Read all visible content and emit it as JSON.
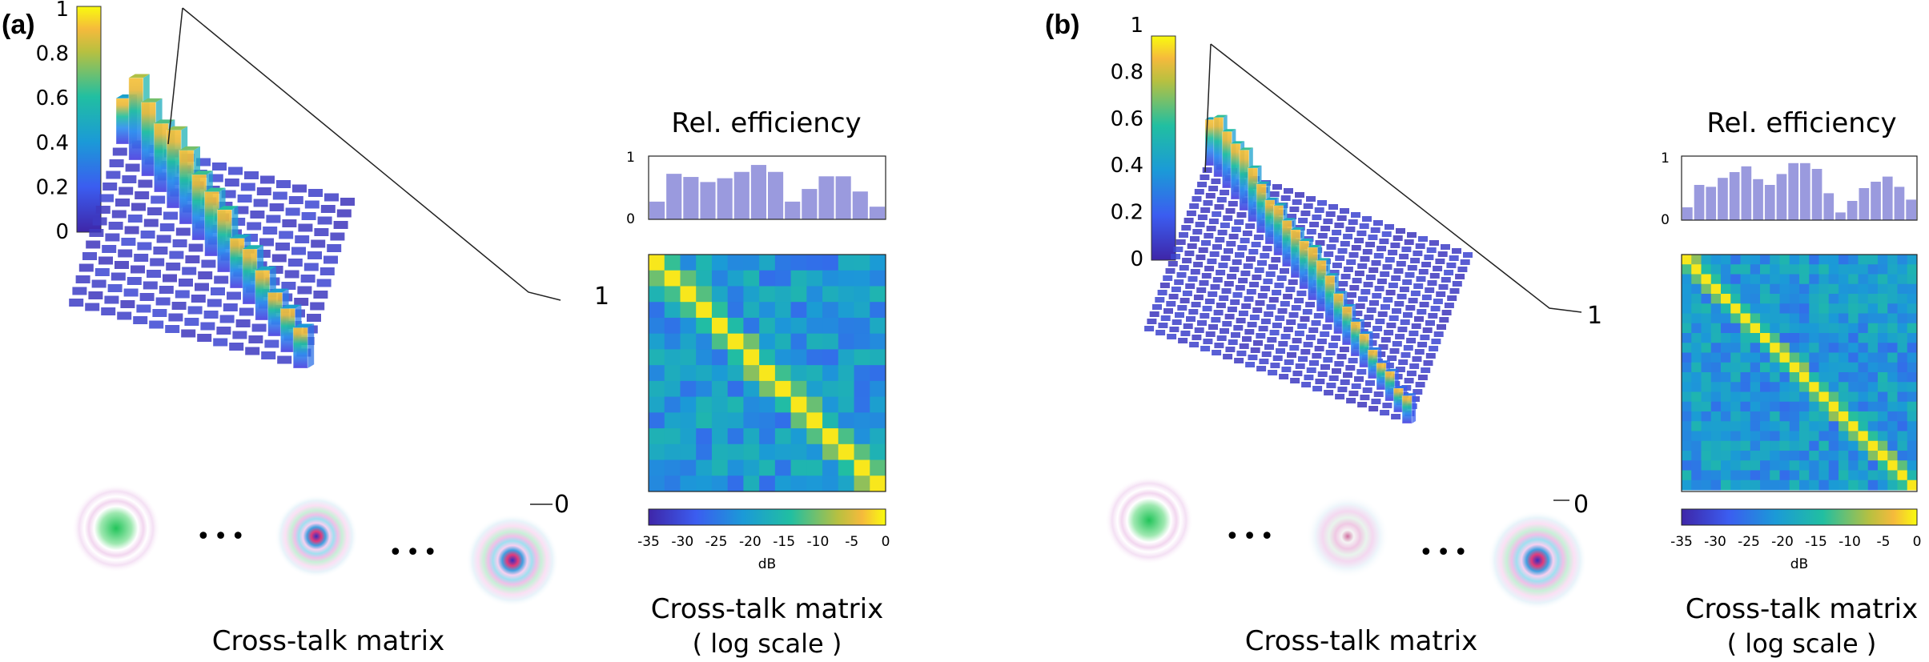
{
  "chart_data": [
    {
      "panel": "(a)",
      "type": "bar3d",
      "title": "Cross-talk matrix",
      "colorbar": {
        "ticks": [
          "0",
          "0.2",
          "0.4",
          "0.6",
          "0.8",
          "1"
        ],
        "range": [
          0,
          1
        ]
      },
      "axis_labels": {
        "near": "0",
        "far": "1"
      },
      "diagonal": [
        0.44,
        0.79,
        0.71,
        0.66,
        0.75,
        0.71,
        0.63,
        0.62,
        0.6,
        0.48,
        0.53,
        0.48,
        0.42,
        0.42,
        0.39
      ],
      "relative_efficiency": {
        "title": "Rel. efficiency",
        "yticks": [
          "1",
          "0"
        ],
        "values": [
          0.28,
          0.72,
          0.67,
          0.59,
          0.65,
          0.75,
          0.86,
          0.75,
          0.28,
          0.48,
          0.68,
          0.68,
          0.44,
          0.2
        ]
      },
      "log_matrix": {
        "title": "Cross-talk matrix",
        "subtitle": "( log  scale )",
        "unit": "dB",
        "colorbar_ticks": [
          "-35",
          "-30",
          "-25",
          "-20",
          "-15",
          "-10",
          "-5",
          "0"
        ],
        "size": 15
      },
      "mode_images": [
        "mode-1",
        "mode-mid",
        "mode-last"
      ],
      "ellipsis": [
        "•••",
        "•••"
      ]
    },
    {
      "panel": "(b)",
      "type": "bar3d",
      "title": "Cross-talk matrix",
      "colorbar": {
        "ticks": [
          "0",
          "0.2",
          "0.4",
          "0.6",
          "0.8",
          "1"
        ],
        "range": [
          0,
          1
        ]
      },
      "axis_labels": {
        "near": "0",
        "far": "1"
      },
      "diagonal": [
        0.48,
        0.62,
        0.59,
        0.58,
        0.63,
        0.56,
        0.51,
        0.46,
        0.52,
        0.48,
        0.5,
        0.5,
        0.55,
        0.53,
        0.49,
        0.42,
        0.4,
        0.36,
        0.35,
        0.3,
        0.28,
        0.31,
        0.25,
        0.29
      ],
      "relative_efficiency": {
        "title": "Rel. efficiency",
        "yticks": [
          "1",
          "0"
        ],
        "values": [
          0.2,
          0.55,
          0.52,
          0.66,
          0.75,
          0.84,
          0.64,
          0.55,
          0.72,
          0.89,
          0.89,
          0.8,
          0.42,
          0.12,
          0.3,
          0.5,
          0.6,
          0.68,
          0.52,
          0.32
        ]
      },
      "log_matrix": {
        "title": "Cross-talk matrix",
        "subtitle": "( log  scale )",
        "unit": "dB",
        "colorbar_ticks": [
          "-35",
          "-30",
          "-25",
          "-20",
          "-15",
          "-10",
          "-5",
          "0"
        ],
        "size": 24
      },
      "mode_images": [
        "mode-1",
        "mode-mid",
        "mode-last"
      ],
      "ellipsis": [
        "•••",
        "•••"
      ]
    }
  ],
  "panels": {
    "a": {
      "letter": "(a)"
    },
    "b": {
      "letter": "(b)"
    }
  },
  "colors": {
    "bar": "#9a9ade",
    "low": "#3d26a8",
    "high": "#f9fb0e"
  }
}
